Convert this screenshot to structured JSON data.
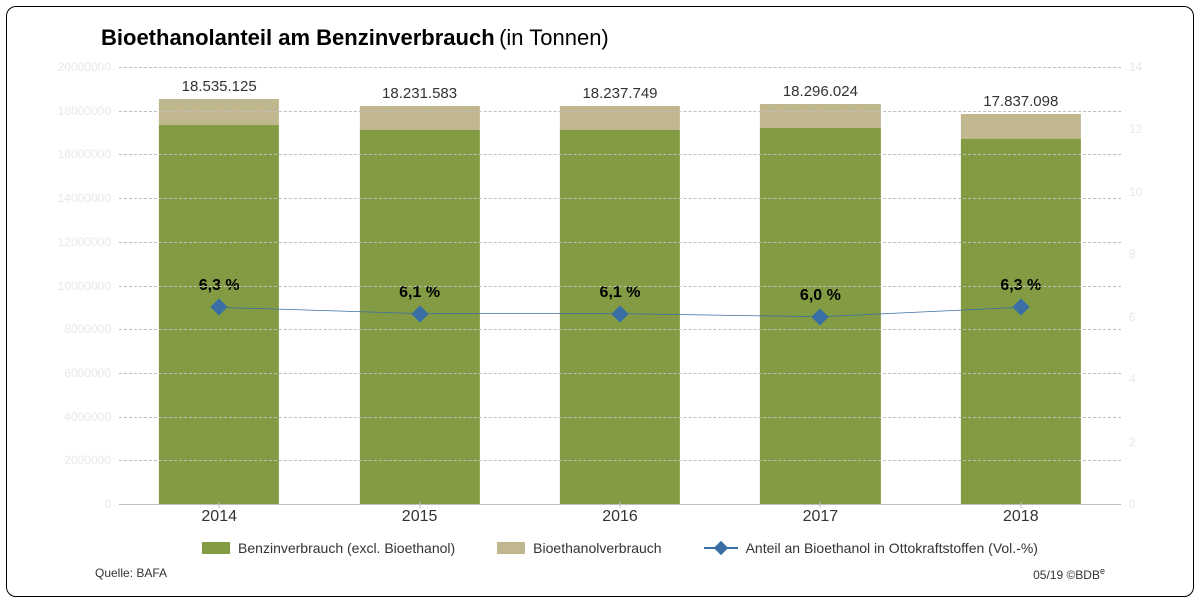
{
  "title": {
    "main": "Bioethanolanteil am Benzinverbrauch",
    "sub": "(in Tonnen)",
    "fontsize_main": 22,
    "fontsize_sub": 22,
    "color": "#000000"
  },
  "background_color": "#ffffff",
  "frame": {
    "border_color": "#000000",
    "border_radius": 10
  },
  "chart": {
    "type": "stacked-bar-with-line",
    "categories": [
      "2014",
      "2015",
      "2016",
      "2017",
      "2018"
    ],
    "bars": {
      "series": [
        {
          "key": "benzin_excl",
          "label": "Benzinverbrauch (excl. Bioethanol)",
          "color": "#839b42"
        },
        {
          "key": "bioethanol",
          "label": "Bioethanolverbrauch",
          "color": "#c1b78f"
        }
      ],
      "values": {
        "benzin_excl": [
          17367413,
          17119727,
          17125517,
          17198262,
          16713361
        ],
        "bioethanol": [
          1167712,
          1111856,
          1112232,
          1097762,
          1123737
        ]
      },
      "totals": [
        18535125,
        18231583,
        18237749,
        18296024,
        17837098
      ],
      "total_labels": [
        "18.535.125",
        "18.231.583",
        "18.237.749",
        "18.296.024",
        "17.837.098"
      ],
      "bar_width_pct": 12,
      "total_label_fontsize": 15,
      "total_label_color": "#333333"
    },
    "line": {
      "label": "Anteil an Bioethanol in Ottokraftstoffen (Vol.-%)",
      "values": [
        6.3,
        6.1,
        6.1,
        6.0,
        6.3
      ],
      "value_labels": [
        "6,3 %",
        "6,1 %",
        "6,1 %",
        "6,0 %",
        "6,3 %"
      ],
      "color": "#3a6fa6",
      "line_width": 2.5,
      "marker": {
        "shape": "diamond",
        "size": 12,
        "fill": "#3a6fa6",
        "stroke": "#3a6fa6"
      },
      "value_label_fontsize": 16,
      "value_label_weight": "bold",
      "value_label_color": "#000000"
    },
    "y_left": {
      "min": 0,
      "max": 20000000,
      "step": 2000000,
      "tick_labels": [
        "0",
        "2000000",
        "4000000",
        "6000000",
        "8000000",
        "10000000",
        "12000000",
        "14000000",
        "16000000",
        "18000000",
        "20000000"
      ],
      "label_color": "#e8e8e8",
      "label_fontsize": 12
    },
    "y_right": {
      "min": 0,
      "max": 14,
      "step": 2,
      "tick_labels": [
        "0",
        "2",
        "4",
        "6",
        "8",
        "10",
        "12",
        "14"
      ],
      "label_color": "#e8e8e8",
      "label_fontsize": 12
    },
    "grid": {
      "style": "dashed",
      "color": "#bfbfbf"
    },
    "baseline_color": "#bfbfbf",
    "x_label_fontsize": 16,
    "x_label_color": "#333333"
  },
  "legend": {
    "items": [
      {
        "kind": "swatch",
        "color": "#839b42",
        "label": "Benzinverbrauch (excl. Bioethanol)"
      },
      {
        "kind": "swatch",
        "color": "#c1b78f",
        "label": "Bioethanolverbrauch"
      },
      {
        "kind": "line-marker",
        "color": "#3a6fa6",
        "label": "Anteil an Bioethanol in Ottokraftstoffen (Vol.-%)"
      }
    ],
    "fontsize": 14,
    "color": "#333333"
  },
  "footer": {
    "source_label": "Quelle: BAFA",
    "date_copyright": "05/19 ©BDB",
    "copyright_sup": "e",
    "fontsize": 12,
    "color": "#333333"
  }
}
